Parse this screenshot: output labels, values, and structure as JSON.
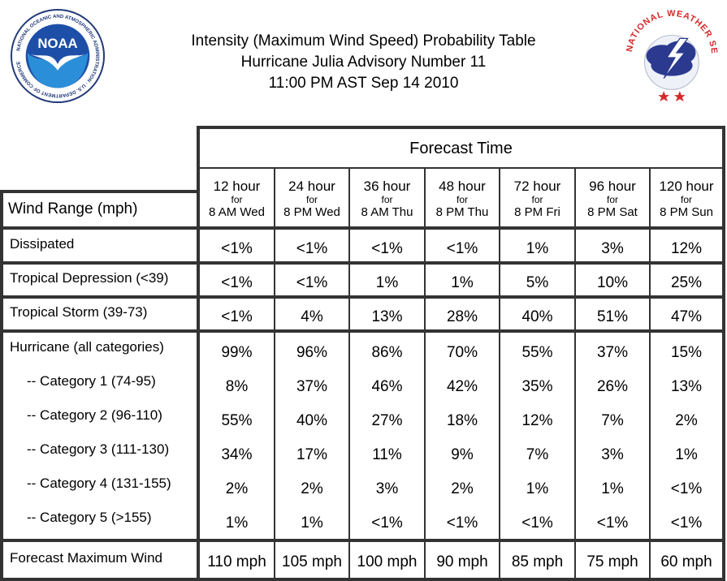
{
  "header": {
    "title_line1": "Intensity (Maximum Wind Speed) Probability Table",
    "title_line2": "Hurricane Julia Advisory Number 11",
    "title_line3": "11:00 PM AST Sep 14 2010"
  },
  "logos": {
    "noaa_text": "NOAA",
    "noaa_ring": "NATIONAL OCEANIC AND ATMOSPHERIC ADMINISTRATION · U.S. DEPARTMENT OF COMMERCE",
    "nws_ring": "NATIONAL WEATHER SERVICE"
  },
  "table": {
    "forecast_time_label": "Forecast Time",
    "wind_range_label": "Wind Range (mph)",
    "columns": [
      {
        "hour": "12 hour",
        "for": "for",
        "when": "8 AM Wed"
      },
      {
        "hour": "24 hour",
        "for": "for",
        "when": "8 PM Wed"
      },
      {
        "hour": "36 hour",
        "for": "for",
        "when": "8 AM Thu"
      },
      {
        "hour": "48 hour",
        "for": "for",
        "when": "8 PM Thu"
      },
      {
        "hour": "72 hour",
        "for": "for",
        "when": "8 PM Fri"
      },
      {
        "hour": "96 hour",
        "for": "for",
        "when": "8 PM Sat"
      },
      {
        "hour": "120 hour",
        "for": "for",
        "when": "8 PM Sun"
      }
    ],
    "rows": [
      {
        "label": "Dissipated",
        "values": [
          "<1%",
          "<1%",
          "<1%",
          "<1%",
          "1%",
          "3%",
          "12%"
        ]
      },
      {
        "label": "Tropical Depression (<39)",
        "values": [
          "<1%",
          "<1%",
          "1%",
          "1%",
          "5%",
          "10%",
          "25%"
        ]
      },
      {
        "label": "Tropical Storm (39-73)",
        "values": [
          "<1%",
          "4%",
          "13%",
          "28%",
          "40%",
          "51%",
          "47%"
        ]
      },
      {
        "label": "Hurricane (all categories)",
        "values": [
          "99%",
          "96%",
          "86%",
          "70%",
          "55%",
          "37%",
          "15%"
        ]
      },
      {
        "label": "-- Category 1 (74-95)",
        "values": [
          "8%",
          "37%",
          "46%",
          "42%",
          "35%",
          "26%",
          "13%"
        ]
      },
      {
        "label": "-- Category 2 (96-110)",
        "values": [
          "55%",
          "40%",
          "27%",
          "18%",
          "12%",
          "7%",
          "2%"
        ]
      },
      {
        "label": "-- Category 3 (111-130)",
        "values": [
          "34%",
          "17%",
          "11%",
          "9%",
          "7%",
          "3%",
          "1%"
        ]
      },
      {
        "label": "-- Category 4 (131-155)",
        "values": [
          "2%",
          "2%",
          "3%",
          "2%",
          "1%",
          "1%",
          "<1%"
        ]
      },
      {
        "label": "-- Category 5 (>155)",
        "values": [
          "1%",
          "1%",
          "<1%",
          "<1%",
          "<1%",
          "<1%",
          "<1%"
        ]
      }
    ],
    "max_wind": {
      "label": "Forecast Maximum Wind",
      "values": [
        "110 mph",
        "105 mph",
        "100 mph",
        "90 mph",
        "85 mph",
        "75 mph",
        "60 mph"
      ]
    }
  }
}
